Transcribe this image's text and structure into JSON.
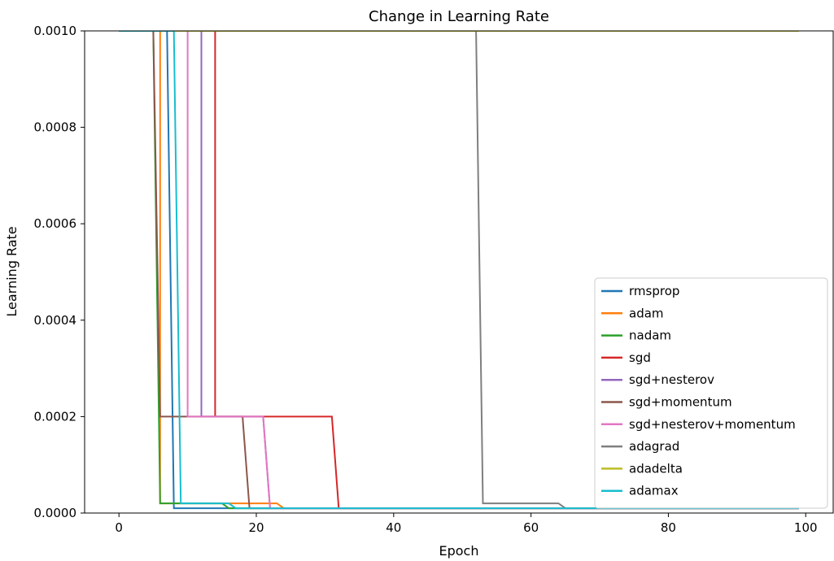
{
  "chart_data": {
    "type": "line",
    "title": "Change in Learning Rate",
    "xlabel": "Epoch",
    "ylabel": "Learning Rate",
    "xlim": [
      -5,
      104
    ],
    "ylim": [
      0,
      0.001
    ],
    "xticks": [
      0,
      20,
      40,
      60,
      80,
      100
    ],
    "xtick_labels": [
      "0",
      "20",
      "40",
      "60",
      "80",
      "100"
    ],
    "yticks": [
      0,
      0.0002,
      0.0004,
      0.0006,
      0.0008,
      0.001
    ],
    "ytick_labels": [
      "0.0000",
      "0.0002",
      "0.0004",
      "0.0006",
      "0.0008",
      "0.0010"
    ],
    "grid": false,
    "legend_position": "lower-right",
    "series": [
      {
        "name": "rmsprop",
        "color": "#1f77b4",
        "x": [
          0,
          7,
          8,
          99
        ],
        "y": [
          0.001,
          0.001,
          1e-05,
          1e-05
        ]
      },
      {
        "name": "adam",
        "color": "#ff7f0e",
        "x": [
          0,
          6,
          6,
          23,
          24,
          99
        ],
        "y": [
          0.001,
          0.001,
          2e-05,
          2e-05,
          1e-05,
          1e-05
        ]
      },
      {
        "name": "nadam",
        "color": "#2ca02c",
        "x": [
          0,
          5,
          6,
          15,
          16,
          99
        ],
        "y": [
          0.001,
          0.001,
          2e-05,
          2e-05,
          1e-05,
          1e-05
        ]
      },
      {
        "name": "sgd",
        "color": "#d62728",
        "x": [
          0,
          14,
          14,
          31,
          32,
          99
        ],
        "y": [
          0.001,
          0.001,
          0.0002,
          0.0002,
          1e-05,
          1e-05
        ]
      },
      {
        "name": "sgd+nesterov",
        "color": "#9467bd",
        "x": [
          0,
          12,
          12,
          21,
          22,
          99
        ],
        "y": [
          0.001,
          0.001,
          0.0002,
          0.0002,
          1e-05,
          1e-05
        ]
      },
      {
        "name": "sgd+momentum",
        "color": "#8c564b",
        "x": [
          0,
          5,
          6,
          18,
          19,
          99
        ],
        "y": [
          0.001,
          0.001,
          0.0002,
          0.0002,
          1e-05,
          1e-05
        ]
      },
      {
        "name": "sgd+nesterov+momentum",
        "color": "#e377c2",
        "x": [
          0,
          10,
          10,
          21,
          22,
          99
        ],
        "y": [
          0.001,
          0.001,
          0.0002,
          0.0002,
          1e-05,
          1e-05
        ]
      },
      {
        "name": "adagrad",
        "color": "#7f7f7f",
        "x": [
          0,
          52,
          53,
          64,
          65,
          99
        ],
        "y": [
          0.001,
          0.001,
          2e-05,
          2e-05,
          1e-05,
          1e-05
        ]
      },
      {
        "name": "adadelta",
        "color": "#bcbd22",
        "x": [
          0,
          99
        ],
        "y": [
          0.001,
          0.001
        ]
      },
      {
        "name": "adamax",
        "color": "#17becf",
        "x": [
          0,
          8,
          9,
          16,
          17,
          99
        ],
        "y": [
          0.001,
          0.001,
          2e-05,
          2e-05,
          1e-05,
          1e-05
        ]
      }
    ]
  }
}
